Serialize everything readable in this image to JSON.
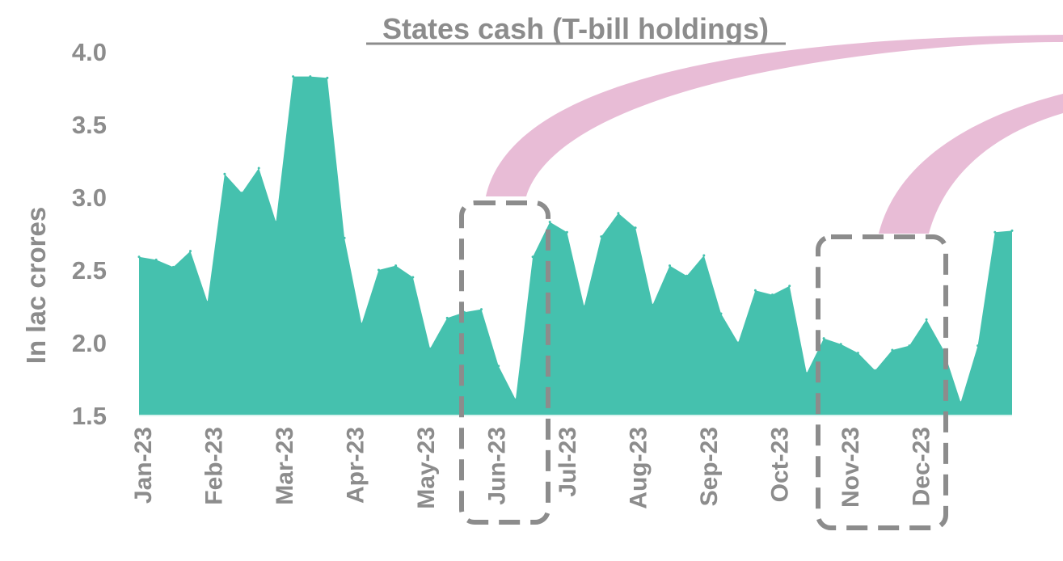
{
  "colors": {
    "area": "#45c1ae",
    "text": "#8c8c8c",
    "callout_box": "#8c8c8c",
    "callout_arrow": "#e6b6d2"
  },
  "chart_data": {
    "type": "area",
    "title": "States cash (T-bill holdings)",
    "xlabel": "",
    "ylabel": "In lac crores",
    "ylim": [
      1.5,
      4.0
    ],
    "yticks": [
      "1.5",
      "2.0",
      "2.5",
      "3.0",
      "3.5",
      "4.0"
    ],
    "grid": false,
    "legend": "none",
    "x_tick_labels": [
      "Jan-23",
      "Feb-23",
      "Mar-23",
      "Apr-23",
      "May-23",
      "Jun-23",
      "Jul-23",
      "Aug-23",
      "Sep-23",
      "Oct-23",
      "Nov-23",
      "Dec-23"
    ],
    "series": [
      {
        "values": [
          2.59,
          2.57,
          2.52,
          2.63,
          2.28,
          3.16,
          3.03,
          3.2,
          2.83,
          3.83,
          3.83,
          3.82,
          2.72,
          2.13,
          2.5,
          2.53,
          2.45,
          1.96,
          2.17,
          2.21,
          2.23,
          1.84,
          1.61,
          2.59,
          2.83,
          2.76,
          2.25,
          2.73,
          2.89,
          2.79,
          2.26,
          2.53,
          2.46,
          2.6,
          2.2,
          2.0,
          2.36,
          2.33,
          2.39,
          1.79,
          2.03,
          1.99,
          1.93,
          1.81,
          1.95,
          1.98,
          2.16,
          1.95,
          1.59,
          1.98,
          2.76,
          2.77
        ]
      }
    ],
    "annotations": [
      {
        "type": "highlight-box",
        "from_index": 19,
        "to_index": 23
      },
      {
        "type": "highlight-box",
        "from_index": 40,
        "to_index": 47
      }
    ]
  }
}
